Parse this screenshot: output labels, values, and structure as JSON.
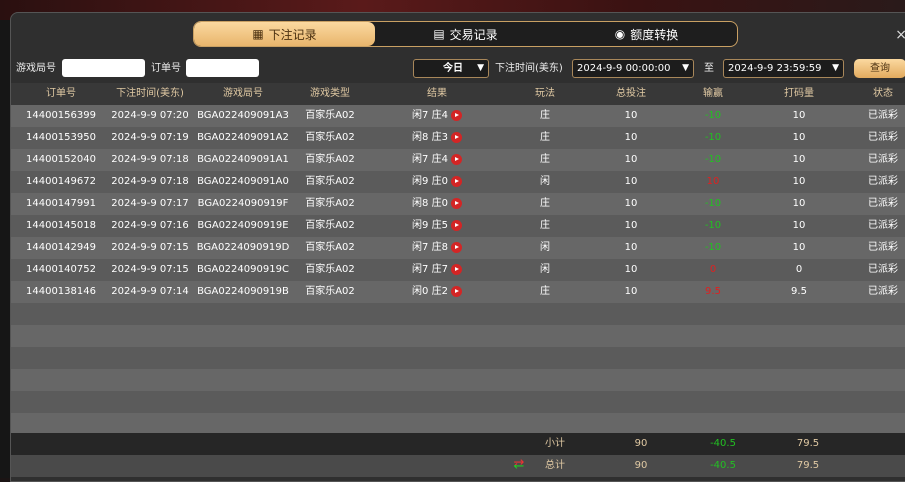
{
  "tabs": [
    {
      "label": "下注记录",
      "icon": "calendar-icon",
      "active": true
    },
    {
      "label": "交易记录",
      "icon": "clipboard-icon"
    },
    {
      "label": "额度转换",
      "icon": "coins-icon"
    }
  ],
  "close": "×",
  "filters": {
    "game_no_label": "游戏局号",
    "game_no_value": "",
    "order_no_label": "订单号",
    "order_no_value": "",
    "range": "今日",
    "time_label": "下注时间(美东)",
    "start": "2024-9-9 00:00:00",
    "to": "至",
    "end": "2024-9-9 23:59:59",
    "query": "查询"
  },
  "columns": [
    "订单号",
    "下注时间(美东)",
    "游戏局号",
    "游戏类型",
    "结果",
    "玩法",
    "总投注",
    "输赢",
    "打码量",
    "状态"
  ],
  "rows": [
    [
      "14400156399",
      "2024-9-9 07:20",
      "BGA022409091A3",
      "百家乐A02",
      "闲7 庄4",
      "庄",
      "10",
      "-10",
      "10",
      "已派彩"
    ],
    [
      "14400153950",
      "2024-9-9 07:19",
      "BGA022409091A2",
      "百家乐A02",
      "闲8 庄3",
      "庄",
      "10",
      "-10",
      "10",
      "已派彩"
    ],
    [
      "14400152040",
      "2024-9-9 07:18",
      "BGA022409091A1",
      "百家乐A02",
      "闲7 庄4",
      "庄",
      "10",
      "-10",
      "10",
      "已派彩"
    ],
    [
      "14400149672",
      "2024-9-9 07:18",
      "BGA022409091A0",
      "百家乐A02",
      "闲9 庄0",
      "闲",
      "10",
      "10",
      "10",
      "已派彩"
    ],
    [
      "14400147991",
      "2024-9-9 07:17",
      "BGA0224090919F",
      "百家乐A02",
      "闲8 庄0",
      "庄",
      "10",
      "-10",
      "10",
      "已派彩"
    ],
    [
      "14400145018",
      "2024-9-9 07:16",
      "BGA0224090919E",
      "百家乐A02",
      "闲9 庄5",
      "庄",
      "10",
      "-10",
      "10",
      "已派彩"
    ],
    [
      "14400142949",
      "2024-9-9 07:15",
      "BGA0224090919D",
      "百家乐A02",
      "闲7 庄8",
      "闲",
      "10",
      "-10",
      "10",
      "已派彩"
    ],
    [
      "14400140752",
      "2024-9-9 07:15",
      "BGA0224090919C",
      "百家乐A02",
      "闲7 庄7",
      "闲",
      "10",
      "0",
      "0",
      "已派彩"
    ],
    [
      "14400138146",
      "2024-9-9 07:14",
      "BGA0224090919B",
      "百家乐A02",
      "闲0 庄2",
      "庄",
      "10",
      "9.5",
      "9.5",
      "已派彩"
    ]
  ],
  "subtotal": {
    "label": "小计",
    "bet": "90",
    "winloss": "-40.5",
    "valid": "79.5"
  },
  "total": {
    "label": "总计",
    "bet": "90",
    "winloss": "-40.5",
    "valid": "79.5"
  },
  "colors": {
    "accent": "#e8b56c",
    "win": "#e02020",
    "loss": "#22c022"
  }
}
